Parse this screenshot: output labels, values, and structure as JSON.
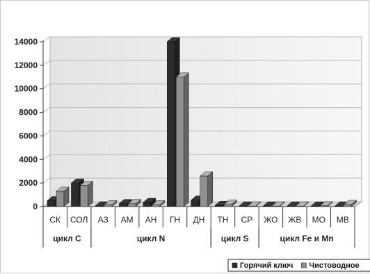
{
  "chart_data": {
    "type": "bar",
    "title": "",
    "xlabel": "",
    "ylabel": "",
    "ylim": [
      0,
      14000
    ],
    "yticks": [
      0,
      2000,
      4000,
      6000,
      8000,
      10000,
      12000,
      14000
    ],
    "categories": [
      "СК",
      "СОЛ",
      "АЗ",
      "АМ",
      "АН",
      "ГН",
      "ДН",
      "ТН",
      "СР",
      "ЖО",
      "ЖВ",
      "МО",
      "МВ"
    ],
    "groups": [
      {
        "label": "цикл С",
        "categories": [
          "СК",
          "СОЛ"
        ]
      },
      {
        "label": "цикл N",
        "categories": [
          "АЗ",
          "АМ",
          "АН",
          "ГН",
          "ДН"
        ]
      },
      {
        "label": "цикл S",
        "categories": [
          "ТН",
          "СР"
        ]
      },
      {
        "label": "цикл Fe и Mn",
        "categories": [
          "ЖО",
          "ЖВ",
          "МО",
          "МВ"
        ]
      }
    ],
    "series": [
      {
        "name": "Горячий ключ",
        "color": "#2b2b2b",
        "values": [
          500,
          2000,
          50,
          250,
          350,
          14000,
          550,
          100,
          40,
          40,
          40,
          40,
          40
        ]
      },
      {
        "name": "Чистоводное",
        "color": "#8f8f8f",
        "values": [
          1300,
          1800,
          150,
          250,
          150,
          11000,
          2600,
          200,
          50,
          50,
          50,
          70,
          180
        ]
      }
    ],
    "grid": true,
    "legend_position": "bottom-right",
    "style": "3d-columns"
  }
}
